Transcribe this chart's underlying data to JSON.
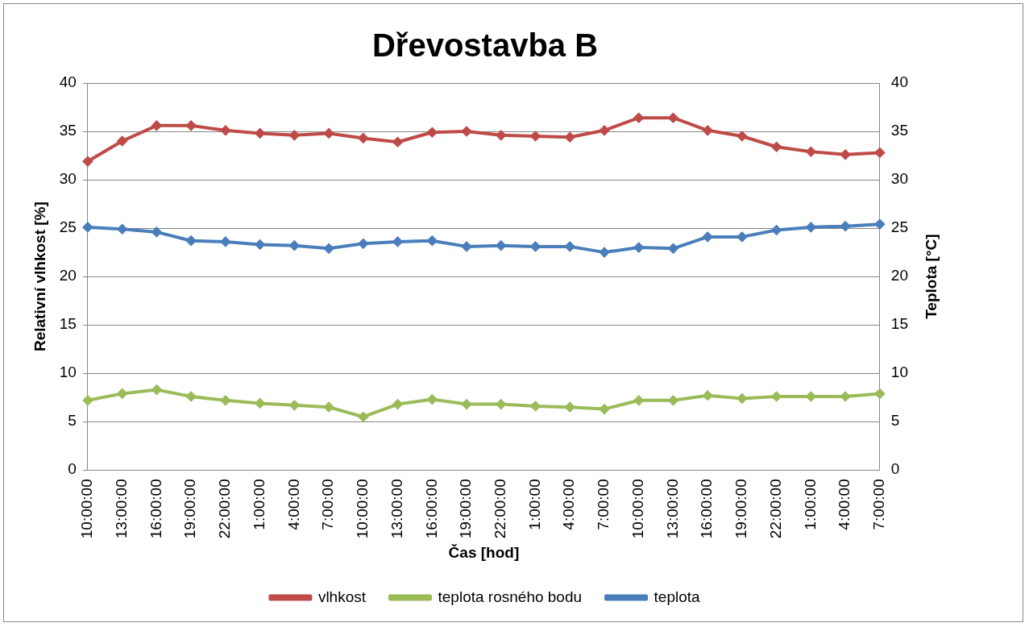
{
  "chart_data": {
    "type": "line",
    "title": "Dřevostavba B",
    "xlabel": "Čas [hod]",
    "ylabel": "Relativní vlhkost [%]",
    "y2label": "Teplota [°C]",
    "categories": [
      "10:00:00",
      "13:00:00",
      "16:00:00",
      "19:00:00",
      "22:00:00",
      "1:00:00",
      "4:00:00",
      "7:00:00",
      "10:00:00",
      "13:00:00",
      "16:00:00",
      "19:00:00",
      "22:00:00",
      "1:00:00",
      "4:00:00",
      "7:00:00",
      "10:00:00",
      "13:00:00",
      "16:00:00",
      "19:00:00",
      "22:00:00",
      "1:00:00",
      "4:00:00",
      "7:00:00"
    ],
    "series": [
      {
        "name": "vlhkost",
        "color": "#be4b48",
        "values": [
          31.9,
          34.0,
          35.6,
          35.6,
          35.1,
          34.8,
          34.6,
          34.8,
          34.3,
          33.9,
          34.9,
          35.0,
          34.6,
          34.5,
          34.4,
          35.1,
          36.4,
          36.4,
          35.1,
          34.5,
          33.4,
          32.9,
          32.6,
          32.8
        ]
      },
      {
        "name": "teplota rosného bodu",
        "color": "#9bbb59",
        "values": [
          7.2,
          7.9,
          8.3,
          7.6,
          7.2,
          6.9,
          6.7,
          6.5,
          5.5,
          6.8,
          7.3,
          6.8,
          6.8,
          6.6,
          6.5,
          6.3,
          7.2,
          7.2,
          7.7,
          7.4,
          7.6,
          7.6,
          7.6,
          7.9
        ]
      },
      {
        "name": "teplota",
        "color": "#4a7ebb",
        "values": [
          25.1,
          24.9,
          24.6,
          23.7,
          23.6,
          23.3,
          23.2,
          22.9,
          23.4,
          23.6,
          23.7,
          23.1,
          23.2,
          23.1,
          23.1,
          22.5,
          23.0,
          22.9,
          24.1,
          24.1,
          24.8,
          25.1,
          25.2,
          25.4
        ]
      }
    ],
    "ylim": [
      0,
      40
    ],
    "yticks": [
      0,
      5,
      10,
      15,
      20,
      25,
      30,
      35,
      40
    ],
    "y2lim": [
      0,
      40
    ],
    "y2ticks": [
      0,
      5,
      10,
      15,
      20,
      25,
      30,
      35,
      40
    ],
    "grid": "y",
    "legend": "bottom",
    "marker": "diamond",
    "line_style": "solid"
  }
}
